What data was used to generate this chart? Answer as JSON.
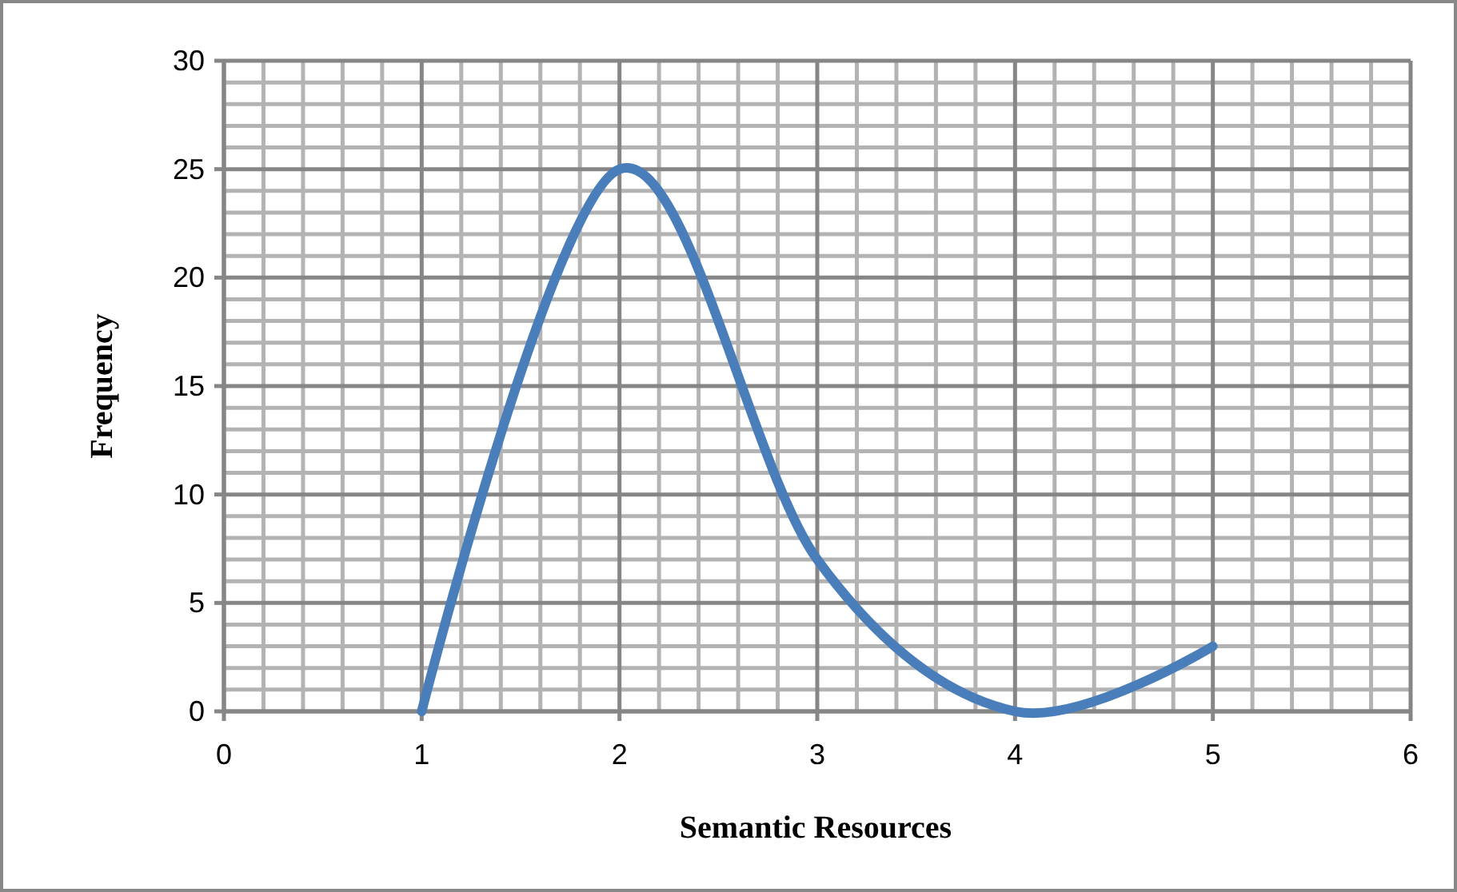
{
  "chart_data": {
    "type": "line",
    "xlabel": "Semantic Resources",
    "ylabel": "Frequency",
    "x": [
      1,
      2,
      3,
      4,
      5
    ],
    "series": [
      {
        "color": "#4a7ebb",
        "values": [
          0,
          25,
          7,
          0,
          3
        ]
      }
    ],
    "xlim": [
      0,
      6
    ],
    "xticks": [
      0,
      1,
      2,
      3,
      4,
      5,
      6
    ],
    "ylim": [
      0,
      30
    ],
    "yticks": [
      0,
      5,
      10,
      15,
      20,
      25,
      30
    ],
    "grid": true,
    "marker": "none",
    "line_style": "solid"
  }
}
